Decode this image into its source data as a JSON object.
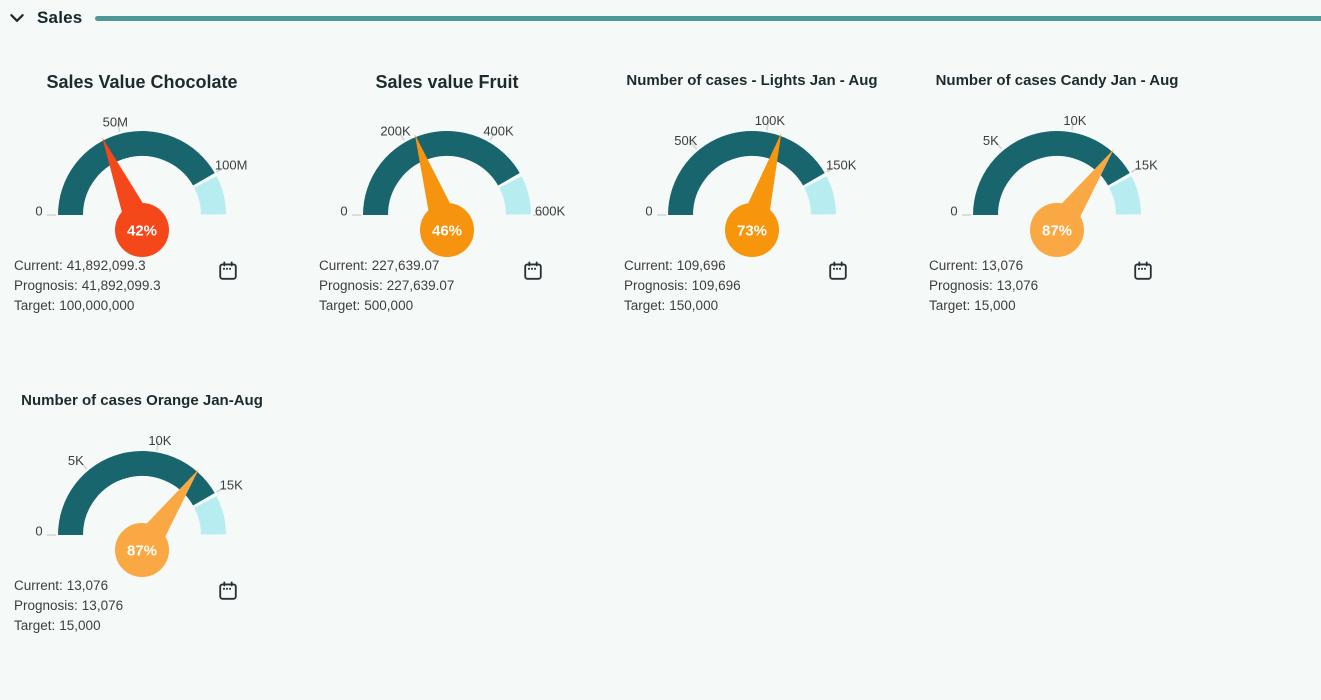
{
  "header": {
    "title": "Sales",
    "accent_color": "#4e9897"
  },
  "info_labels": {
    "current": "Current:",
    "prognosis": "Prognosis:",
    "target": "Target:"
  },
  "gauge_style": {
    "track_color": "#19656d",
    "remainder_color": "#b7edf0",
    "tick_color": "#d2d6d5",
    "tick_label_color": "#3d3d3d",
    "percent_text_color": "#ffffff"
  },
  "chart_data": [
    {
      "type": "gauge",
      "title": "Sales Value Chocolate",
      "percent": "42%",
      "current": "41,892,099.3",
      "prognosis": "41,892,099.3",
      "target": "100,000,000",
      "needle_value": 41892099.3,
      "target_value": 100000000,
      "axis": {
        "min": 0,
        "max": 120000000
      },
      "ticks": [
        {
          "label": "0",
          "value": 0
        },
        {
          "label": "50M",
          "value": 50000000
        },
        {
          "label": "100M",
          "value": 100000000
        }
      ],
      "needle_color": "#f4481b"
    },
    {
      "type": "gauge",
      "title": "Sales value Fruit",
      "percent": "46%",
      "current": "227,639.07",
      "prognosis": "227,639.07",
      "target": "500,000",
      "needle_value": 227639.07,
      "target_value": 500000,
      "axis": {
        "min": 0,
        "max": 600000
      },
      "ticks": [
        {
          "label": "0",
          "value": 0
        },
        {
          "label": "200K",
          "value": 200000
        },
        {
          "label": "400K",
          "value": 400000
        },
        {
          "label": "600K",
          "value": 600000
        }
      ],
      "needle_color": "#f6930f"
    },
    {
      "type": "gauge",
      "title": "Number of cases - Lights Jan - Aug",
      "percent": "73%",
      "current": "109,696",
      "prognosis": "109,696",
      "target": "150,000",
      "needle_value": 109696,
      "target_value": 150000,
      "axis": {
        "min": 0,
        "max": 180000
      },
      "ticks": [
        {
          "label": "0",
          "value": 0
        },
        {
          "label": "50K",
          "value": 50000
        },
        {
          "label": "100K",
          "value": 100000
        },
        {
          "label": "150K",
          "value": 150000
        }
      ],
      "needle_color": "#f7950d"
    },
    {
      "type": "gauge",
      "title": "Number of cases Candy Jan - Aug",
      "percent": "87%",
      "current": "13,076",
      "prognosis": "13,076",
      "target": "15,000",
      "needle_value": 13076,
      "target_value": 15000,
      "axis": {
        "min": 0,
        "max": 18000
      },
      "ticks": [
        {
          "label": "0",
          "value": 0
        },
        {
          "label": "5K",
          "value": 5000
        },
        {
          "label": "10K",
          "value": 10000
        },
        {
          "label": "15K",
          "value": 15000
        }
      ],
      "needle_color": "#f9a843"
    },
    {
      "type": "gauge",
      "title": "Number of cases Orange Jan-Aug",
      "percent": "87%",
      "current": "13,076",
      "prognosis": "13,076",
      "target": "15,000",
      "needle_value": 13076,
      "target_value": 15000,
      "axis": {
        "min": 0,
        "max": 18000
      },
      "ticks": [
        {
          "label": "0",
          "value": 0
        },
        {
          "label": "5K",
          "value": 5000
        },
        {
          "label": "10K",
          "value": 10000
        },
        {
          "label": "15K",
          "value": 15000
        }
      ],
      "needle_color": "#f9a843"
    }
  ]
}
